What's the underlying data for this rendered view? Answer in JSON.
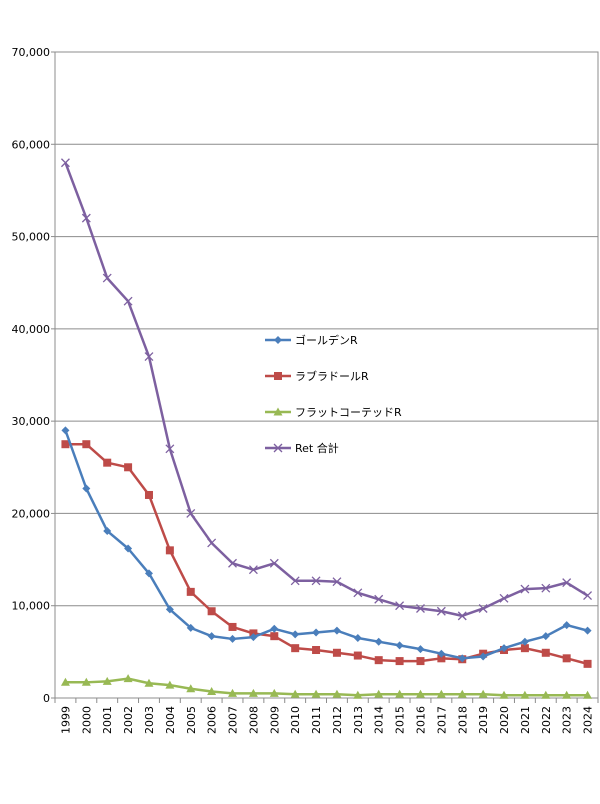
{
  "chart_data": {
    "type": "line",
    "title": "",
    "xlabel": "",
    "ylabel": "",
    "categories": [
      "1999",
      "2000",
      "2001",
      "2002",
      "2003",
      "2004",
      "2005",
      "2006",
      "2007",
      "2008",
      "2009",
      "2010",
      "2011",
      "2012",
      "2013",
      "2014",
      "2015",
      "2016",
      "2017",
      "2018",
      "2019",
      "2020",
      "2021",
      "2022",
      "2023",
      "2024"
    ],
    "ylim": [
      0,
      70000
    ],
    "yticks": [
      "0",
      "10,000",
      "20,000",
      "30,000",
      "40,000",
      "50,000",
      "60,000",
      "70,000"
    ],
    "grid": true,
    "legend_position": "center",
    "series": [
      {
        "name": "ゴールデンR",
        "color": "#4a7ebb",
        "marker": "diamond",
        "values": [
          29000,
          22700,
          18100,
          16200,
          13500,
          9600,
          7600,
          6700,
          6400,
          6600,
          7500,
          6900,
          7100,
          7300,
          6500,
          6100,
          5700,
          5300,
          4800,
          4300,
          4500,
          5400,
          6100,
          6700,
          7900,
          7300
        ]
      },
      {
        "name": "ラブラドールR",
        "color": "#be4b48",
        "marker": "square",
        "values": [
          27500,
          27500,
          25500,
          25000,
          22000,
          16000,
          11500,
          9400,
          7700,
          7000,
          6700,
          5400,
          5200,
          4900,
          4600,
          4100,
          4000,
          4000,
          4300,
          4200,
          4800,
          5200,
          5400,
          4900,
          4300,
          3700
        ]
      },
      {
        "name": "フラットコーテッドR",
        "color": "#98b954",
        "marker": "triangle",
        "values": [
          1700,
          1700,
          1800,
          2100,
          1600,
          1400,
          1000,
          700,
          500,
          500,
          500,
          400,
          400,
          400,
          300,
          400,
          400,
          400,
          400,
          400,
          400,
          300,
          300,
          300,
          300,
          300
        ]
      },
      {
        "name": "Ret 合計",
        "color": "#7d60a0",
        "marker": "x",
        "values": [
          58000,
          52000,
          45500,
          43000,
          37000,
          27000,
          20000,
          16800,
          14600,
          13900,
          14600,
          12700,
          12700,
          12600,
          11400,
          10700,
          10000,
          9700,
          9400,
          8900,
          9700,
          10800,
          11800,
          11900,
          12500,
          11100
        ]
      }
    ]
  }
}
